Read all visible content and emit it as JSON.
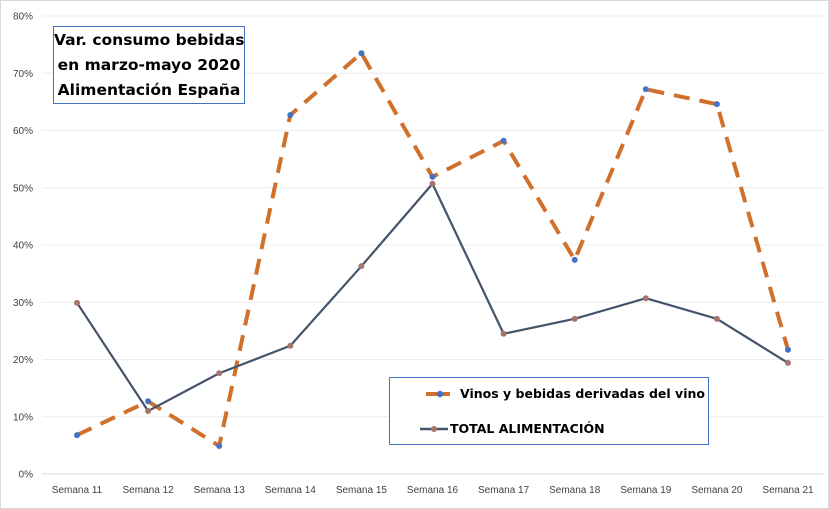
{
  "chart_data": {
    "type": "line",
    "title": [
      "Var. consumo bebidas",
      "en marzo-mayo 2020",
      "Alimentación España"
    ],
    "categories": [
      "Semana 11",
      "Semana 12",
      "Semana 13",
      "Semana 14",
      "Semana 15",
      "Semana 16",
      "Semana 17",
      "Semana 18",
      "Semana 19",
      "Semana 20",
      "Semana 21"
    ],
    "yticks": [
      "0%",
      "10%",
      "20%",
      "30%",
      "40%",
      "50%",
      "60%",
      "70%",
      "80%"
    ],
    "ylim": [
      0,
      80
    ],
    "grid": true,
    "legend_position": "bottom-center",
    "series": [
      {
        "name": "Vinos y bebidas derivadas del vino",
        "color": "#d0702a",
        "marker_color": "#4472c4",
        "style": "dashed",
        "values": [
          6.8,
          12.7,
          4.9,
          62.7,
          73.5,
          51.9,
          58.2,
          37.4,
          67.2,
          64.6,
          21.7
        ]
      },
      {
        "name": "TOTAL ALIMENTACIÓN",
        "color": "#44546a",
        "marker_color": "#a5746e",
        "style": "solid",
        "values": [
          29.9,
          11.0,
          17.6,
          22.4,
          36.3,
          50.7,
          24.5,
          27.1,
          30.7,
          27.1,
          19.4
        ]
      }
    ]
  }
}
